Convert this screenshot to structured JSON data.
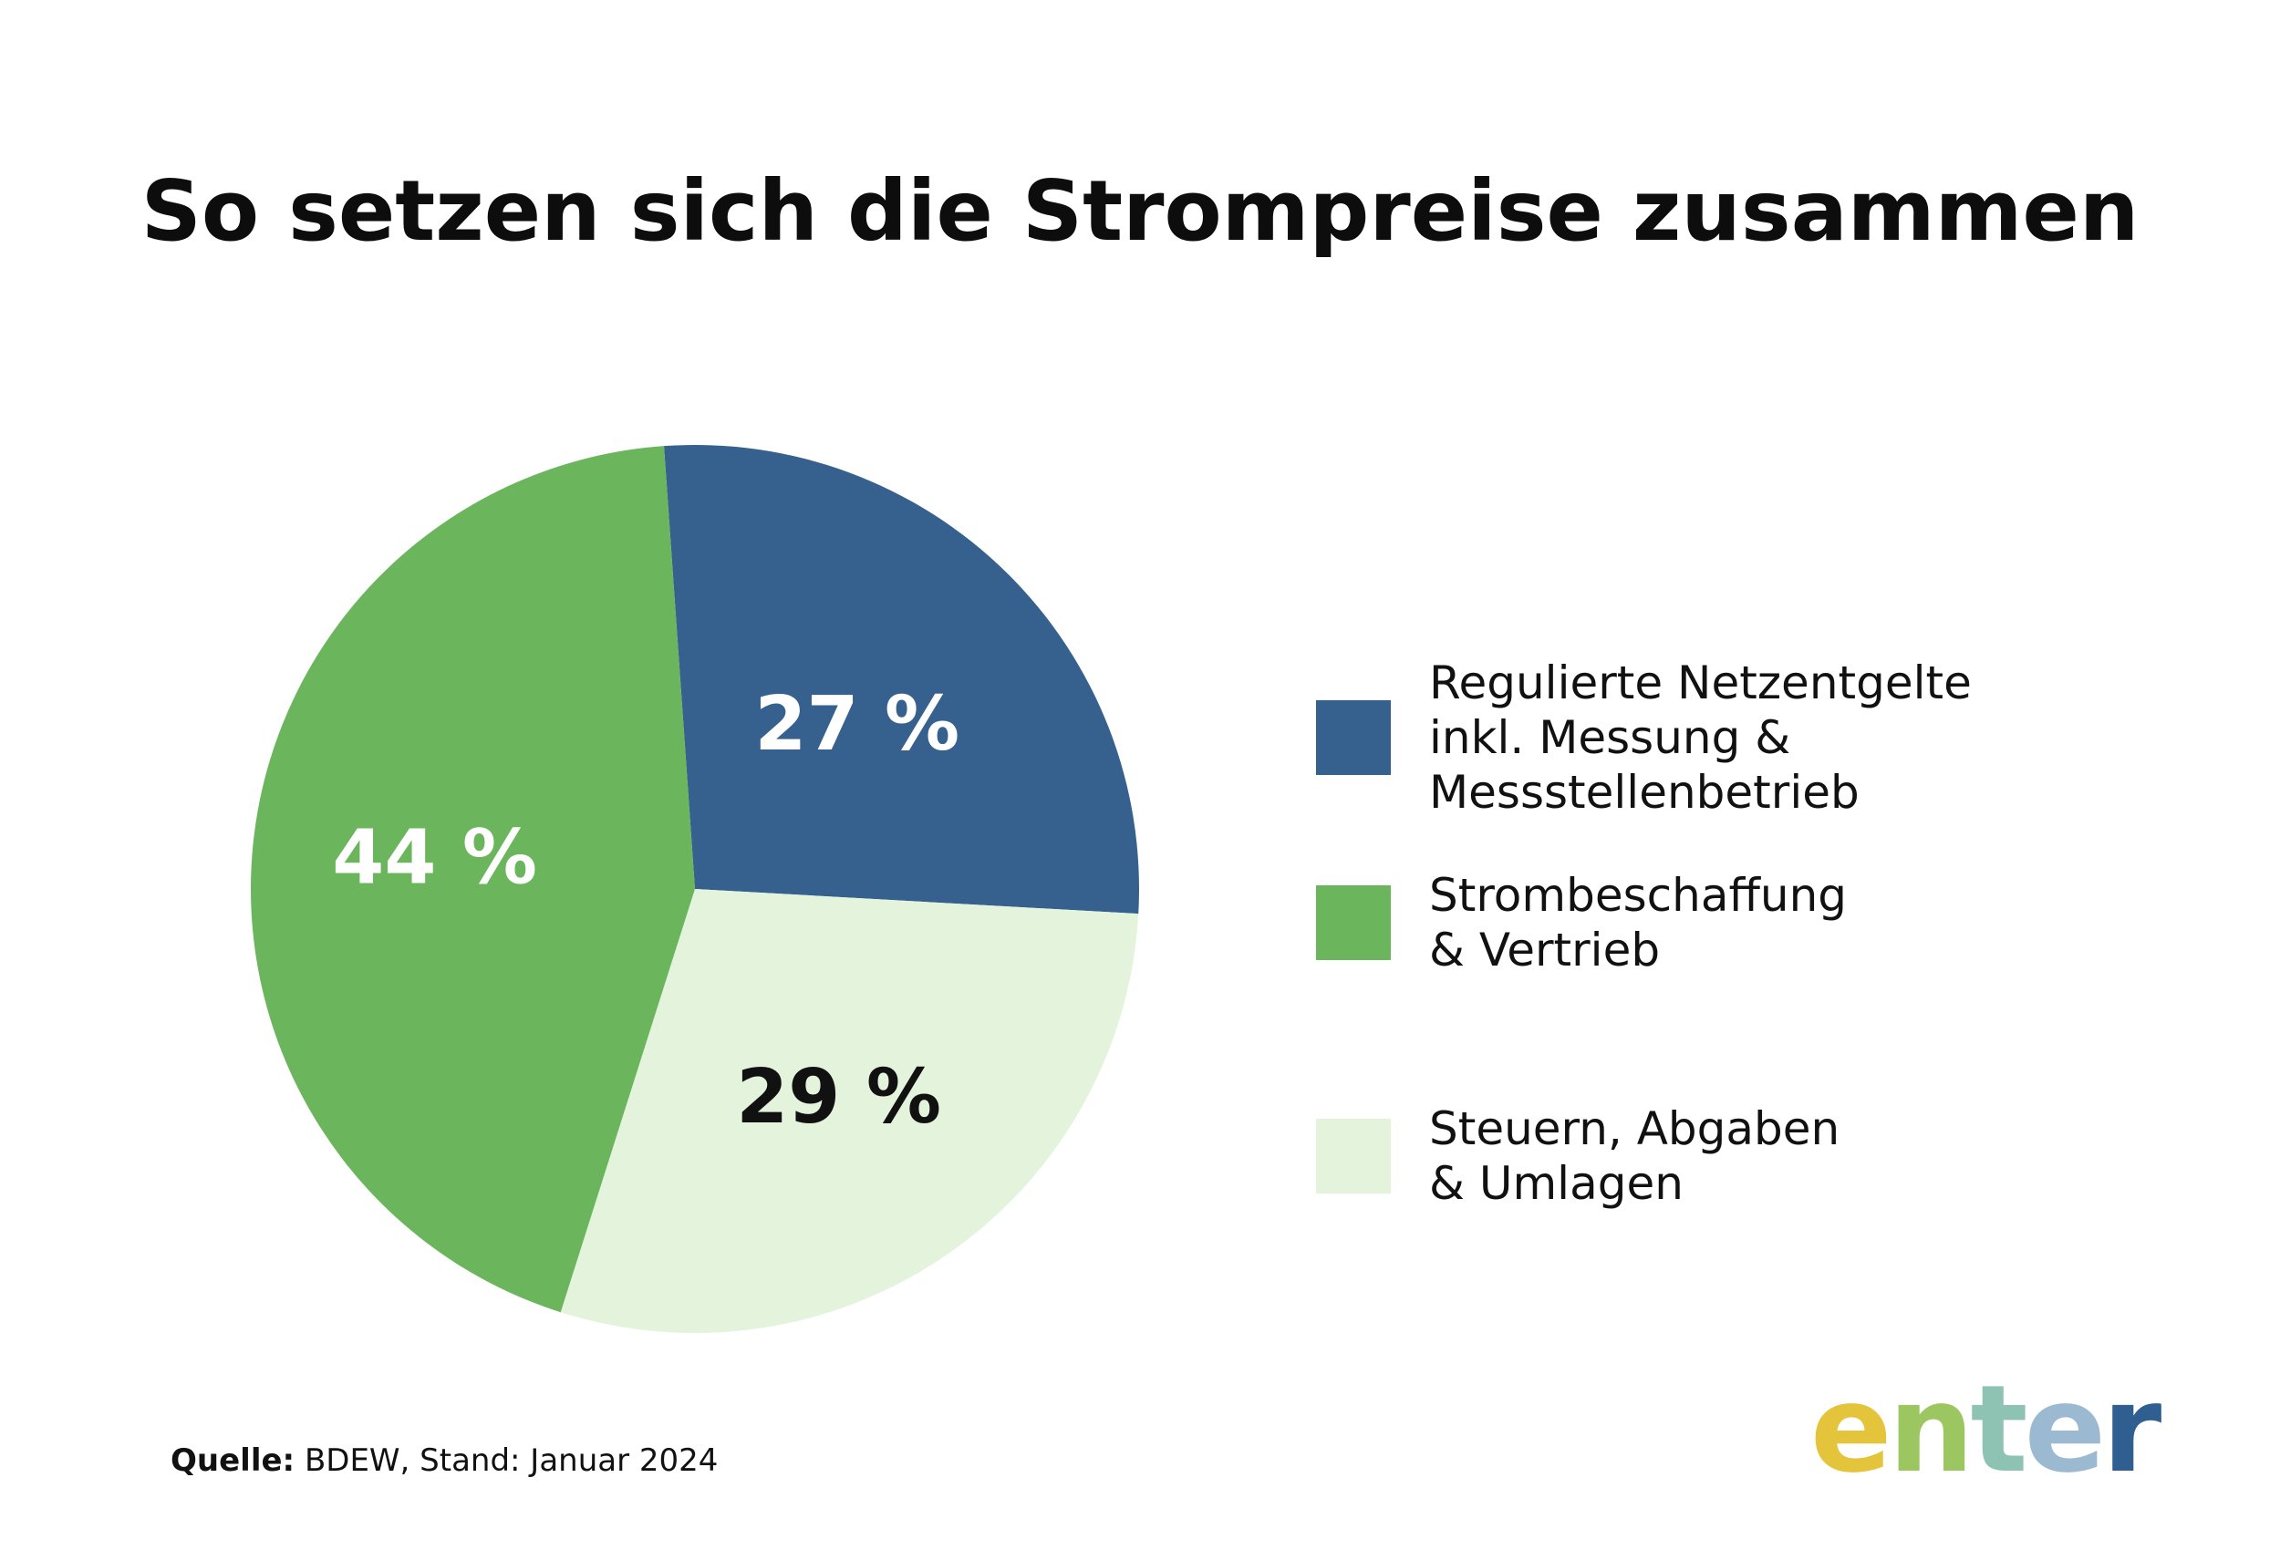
{
  "title": "So setzen sich die Strompreise zusammen",
  "colors": {
    "blue": "#36608D",
    "green": "#6BB55D",
    "light_green": "#E3F3DC",
    "label_light": "#ffffff",
    "label_dark": "#111111"
  },
  "chart_data": {
    "type": "pie",
    "title": "So setzen sich die Strompreise zusammen",
    "slices": [
      {
        "name": "Regulierte Netzentgelte inkl. Messung & Messstellenbetrieb",
        "value": 27,
        "label": "27 %",
        "color": "#36608D",
        "label_color": "#ffffff"
      },
      {
        "name": "Steuern, Abgaben & Umlagen",
        "value": 29,
        "label": "29 %",
        "color": "#E3F3DC",
        "label_color": "#111111"
      },
      {
        "name": "Strombeschaffung & Vertrieb",
        "value": 44,
        "label": "44 %",
        "color": "#6BB55D",
        "label_color": "#ffffff"
      }
    ],
    "legend_position": "right"
  },
  "legend": {
    "items": [
      {
        "lines": [
          "Regulierte Netzentgelte",
          "inkl. Messung &",
          "Messstellenbetrieb"
        ],
        "color": "#36608D"
      },
      {
        "lines": [
          "Strombeschaffung",
          "& Vertrieb"
        ],
        "color": "#6BB55D"
      },
      {
        "lines": [
          "Steuern, Abgaben",
          "& Umlagen"
        ],
        "color": "#E3F3DC"
      }
    ]
  },
  "source": {
    "label": "Quelle:",
    "text": " BDEW, Stand: Januar 2024"
  },
  "logo": {
    "letters": [
      "e",
      "n",
      "t",
      "e",
      "r"
    ],
    "colors": [
      "#E3C43A",
      "#9CC760",
      "#8EC3B4",
      "#9CB9D2",
      "#2F5E90"
    ]
  }
}
